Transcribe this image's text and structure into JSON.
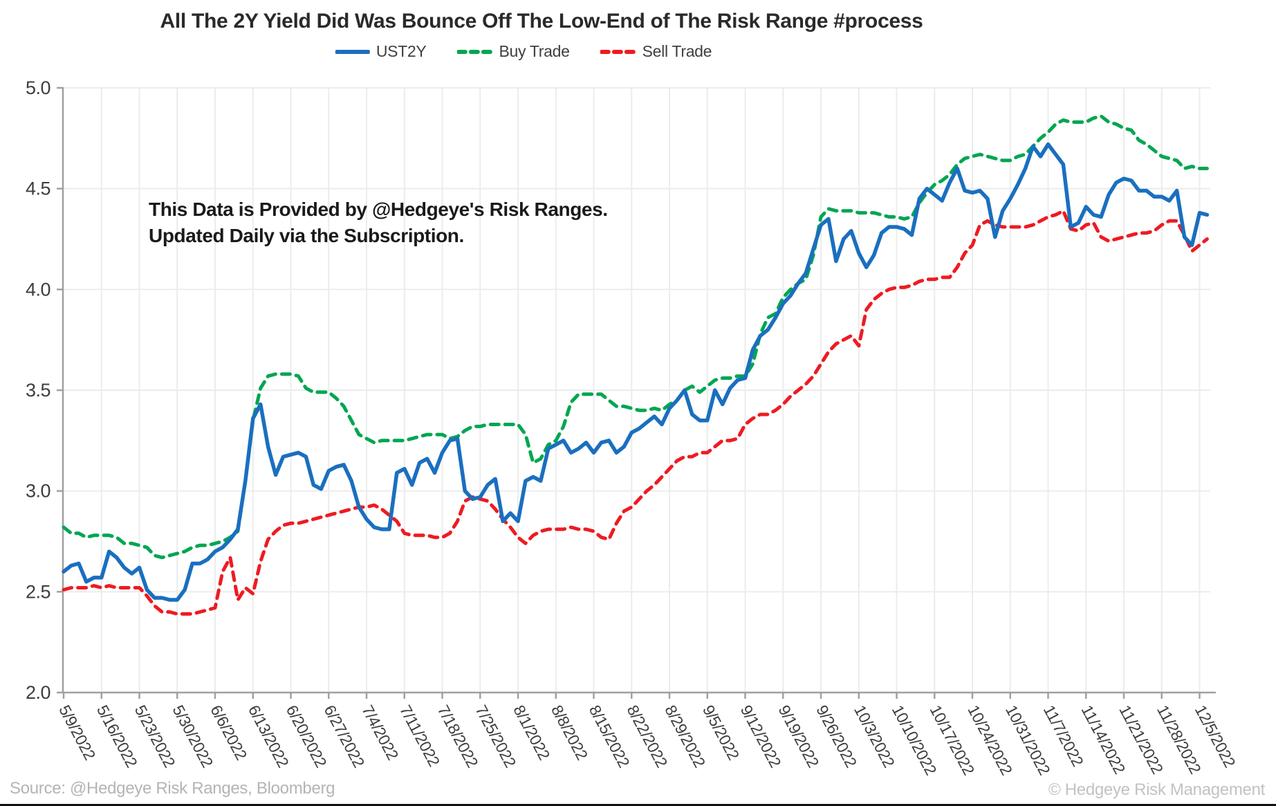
{
  "title": "All The 2Y Yield Did Was Bounce Off The Low-End of The Risk Range #process",
  "legend": {
    "items": [
      {
        "label": "UST2Y",
        "color": "#1a6fbf",
        "style": "solid"
      },
      {
        "label": "Buy Trade",
        "color": "#00a651",
        "style": "dashed"
      },
      {
        "label": "Sell Trade",
        "color": "#ee1b22",
        "style": "dashed"
      }
    ]
  },
  "annotation": {
    "line1": "This Data is Provided by @Hedgeye's Risk Ranges.",
    "line2": "Updated Daily via the Subscription."
  },
  "footer": {
    "source": "Source: @Hedgeye Risk Ranges, Bloomberg",
    "copyright": "© Hedgeye Risk Management"
  },
  "colors": {
    "ust2y": "#1a6fbf",
    "buy_trade": "#00a651",
    "sell_trade": "#ee1b22",
    "gridline": "#ececec",
    "spine": "#a0a0a0",
    "tick_label": "#3d3d3d"
  },
  "chart_data": {
    "type": "line",
    "title": "All The 2Y Yield Did Was Bounce Off The Low-End of The Risk Range #process",
    "xlabel": "",
    "ylabel": "",
    "ylim": [
      2.0,
      5.0
    ],
    "ytick_labels": [
      "5.0",
      "4.5",
      "4.0",
      "3.5",
      "3.0",
      "2.5",
      "2.0"
    ],
    "yticks": [
      5.0,
      4.5,
      4.0,
      3.5,
      3.0,
      2.5,
      2.0
    ],
    "grid": true,
    "legend_position": "top",
    "x_tick_every": 5,
    "x_tick_labels": [
      "5/9/2022",
      "5/16/2022",
      "5/23/2022",
      "5/30/2022",
      "6/6/2022",
      "6/13/2022",
      "6/20/2022",
      "6/27/2022",
      "7/4/2022",
      "7/11/2022",
      "7/18/2022",
      "7/25/2022",
      "8/1/2022",
      "8/8/2022",
      "8/15/2022",
      "8/22/2022",
      "8/29/2022",
      "9/5/2022",
      "9/12/2022",
      "9/19/2022",
      "9/26/2022",
      "10/3/2022",
      "10/10/2022",
      "10/17/2022",
      "10/24/2022",
      "10/31/2022",
      "11/7/2022",
      "11/14/2022",
      "11/21/2022",
      "11/28/2022",
      "12/5/2022"
    ],
    "x": [
      "5/9",
      "5/10",
      "5/11",
      "5/12",
      "5/13",
      "5/16",
      "5/17",
      "5/18",
      "5/19",
      "5/20",
      "5/23",
      "5/24",
      "5/25",
      "5/26",
      "5/27",
      "5/30",
      "5/31",
      "6/1",
      "6/2",
      "6/3",
      "6/6",
      "6/7",
      "6/8",
      "6/9",
      "6/10",
      "6/13",
      "6/14",
      "6/15",
      "6/16",
      "6/17",
      "6/20",
      "6/21",
      "6/22",
      "6/23",
      "6/24",
      "6/27",
      "6/28",
      "6/29",
      "6/30",
      "7/1",
      "7/4",
      "7/5",
      "7/6",
      "7/7",
      "7/8",
      "7/11",
      "7/12",
      "7/13",
      "7/14",
      "7/15",
      "7/18",
      "7/19",
      "7/20",
      "7/21",
      "7/22",
      "7/25",
      "7/26",
      "7/27",
      "7/28",
      "7/29",
      "8/1",
      "8/2",
      "8/3",
      "8/4",
      "8/5",
      "8/8",
      "8/9",
      "8/10",
      "8/11",
      "8/12",
      "8/15",
      "8/16",
      "8/17",
      "8/18",
      "8/19",
      "8/22",
      "8/23",
      "8/24",
      "8/25",
      "8/26",
      "8/29",
      "8/30",
      "8/31",
      "9/1",
      "9/2",
      "9/5",
      "9/6",
      "9/7",
      "9/8",
      "9/9",
      "9/12",
      "9/13",
      "9/14",
      "9/15",
      "9/16",
      "9/19",
      "9/20",
      "9/21",
      "9/22",
      "9/23",
      "9/26",
      "9/27",
      "9/28",
      "9/29",
      "9/30",
      "10/3",
      "10/4",
      "10/5",
      "10/6",
      "10/7",
      "10/10",
      "10/11",
      "10/12",
      "10/13",
      "10/14",
      "10/17",
      "10/18",
      "10/19",
      "10/20",
      "10/21",
      "10/24",
      "10/25",
      "10/26",
      "10/27",
      "10/28",
      "10/31",
      "11/1",
      "11/2",
      "11/3",
      "11/4",
      "11/7",
      "11/8",
      "11/9",
      "11/10",
      "11/11",
      "11/14",
      "11/15",
      "11/16",
      "11/17",
      "11/18",
      "11/21",
      "11/22",
      "11/23",
      "11/24",
      "11/25",
      "11/28",
      "11/29",
      "11/30",
      "12/1",
      "12/2",
      "12/5",
      "12/6"
    ],
    "series": [
      {
        "name": "UST2Y",
        "color": "#1a6fbf",
        "dashed": false,
        "values": [
          2.6,
          2.63,
          2.64,
          2.55,
          2.57,
          2.57,
          2.7,
          2.67,
          2.62,
          2.59,
          2.62,
          2.51,
          2.47,
          2.47,
          2.46,
          2.46,
          2.51,
          2.64,
          2.64,
          2.66,
          2.7,
          2.72,
          2.76,
          2.81,
          3.05,
          3.36,
          3.43,
          3.22,
          3.08,
          3.17,
          3.18,
          3.19,
          3.17,
          3.03,
          3.01,
          3.1,
          3.12,
          3.13,
          3.05,
          2.92,
          2.86,
          2.82,
          2.81,
          2.81,
          3.09,
          3.11,
          3.03,
          3.14,
          3.16,
          3.09,
          3.19,
          3.25,
          3.26,
          3.0,
          2.96,
          2.97,
          3.03,
          3.06,
          2.85,
          2.89,
          2.85,
          3.05,
          3.07,
          3.05,
          3.21,
          3.23,
          3.25,
          3.19,
          3.21,
          3.24,
          3.19,
          3.24,
          3.25,
          3.19,
          3.22,
          3.29,
          3.31,
          3.34,
          3.37,
          3.33,
          3.41,
          3.45,
          3.5,
          3.38,
          3.35,
          3.35,
          3.5,
          3.43,
          3.51,
          3.55,
          3.56,
          3.7,
          3.77,
          3.8,
          3.86,
          3.93,
          3.97,
          4.03,
          4.08,
          4.2,
          4.32,
          4.35,
          4.14,
          4.25,
          4.29,
          4.18,
          4.11,
          4.17,
          4.28,
          4.31,
          4.31,
          4.3,
          4.27,
          4.45,
          4.5,
          4.47,
          4.44,
          4.53,
          4.6,
          4.49,
          4.48,
          4.49,
          4.45,
          4.26,
          4.39,
          4.45,
          4.52,
          4.6,
          4.71,
          4.66,
          4.72,
          4.67,
          4.62,
          4.31,
          4.33,
          4.41,
          4.37,
          4.36,
          4.47,
          4.53,
          4.55,
          4.54,
          4.49,
          4.49,
          4.46,
          4.46,
          4.44,
          4.49,
          4.26,
          4.22,
          4.38,
          4.37
        ]
      },
      {
        "name": "Buy Trade",
        "color": "#00a651",
        "dashed": true,
        "values": [
          2.82,
          2.79,
          2.79,
          2.77,
          2.78,
          2.78,
          2.78,
          2.77,
          2.74,
          2.74,
          2.73,
          2.72,
          2.68,
          2.67,
          2.68,
          2.69,
          2.7,
          2.72,
          2.73,
          2.73,
          2.74,
          2.75,
          2.77,
          2.8,
          3.05,
          3.35,
          3.51,
          3.57,
          3.58,
          3.58,
          3.58,
          3.57,
          3.51,
          3.49,
          3.49,
          3.49,
          3.46,
          3.42,
          3.35,
          3.28,
          3.26,
          3.24,
          3.25,
          3.25,
          3.25,
          3.25,
          3.26,
          3.27,
          3.28,
          3.28,
          3.28,
          3.26,
          3.27,
          3.3,
          3.32,
          3.32,
          3.33,
          3.33,
          3.33,
          3.33,
          3.33,
          3.28,
          3.14,
          3.16,
          3.23,
          3.25,
          3.32,
          3.44,
          3.48,
          3.48,
          3.48,
          3.48,
          3.45,
          3.42,
          3.42,
          3.41,
          3.4,
          3.4,
          3.41,
          3.4,
          3.43,
          3.45,
          3.5,
          3.52,
          3.49,
          3.52,
          3.55,
          3.56,
          3.56,
          3.57,
          3.57,
          3.63,
          3.78,
          3.86,
          3.88,
          3.96,
          4.0,
          4.03,
          4.05,
          4.17,
          4.36,
          4.4,
          4.39,
          4.39,
          4.39,
          4.38,
          4.38,
          4.38,
          4.37,
          4.36,
          4.36,
          4.35,
          4.36,
          4.43,
          4.48,
          4.52,
          4.54,
          4.57,
          4.62,
          4.65,
          4.66,
          4.67,
          4.66,
          4.65,
          4.64,
          4.64,
          4.66,
          4.67,
          4.71,
          4.75,
          4.78,
          4.82,
          4.84,
          4.83,
          4.83,
          4.83,
          4.85,
          4.86,
          4.83,
          4.82,
          4.8,
          4.79,
          4.74,
          4.72,
          4.69,
          4.66,
          4.65,
          4.64,
          4.6,
          4.61,
          4.6,
          4.6
        ]
      },
      {
        "name": "Sell Trade",
        "color": "#ee1b22",
        "dashed": true,
        "values": [
          2.51,
          2.52,
          2.52,
          2.52,
          2.53,
          2.52,
          2.53,
          2.52,
          2.52,
          2.52,
          2.52,
          2.48,
          2.43,
          2.4,
          2.4,
          2.39,
          2.39,
          2.39,
          2.4,
          2.41,
          2.42,
          2.6,
          2.67,
          2.46,
          2.52,
          2.49,
          2.65,
          2.76,
          2.8,
          2.83,
          2.84,
          2.84,
          2.85,
          2.86,
          2.87,
          2.88,
          2.89,
          2.9,
          2.91,
          2.92,
          2.92,
          2.93,
          2.91,
          2.88,
          2.85,
          2.79,
          2.78,
          2.78,
          2.78,
          2.77,
          2.77,
          2.79,
          2.85,
          2.95,
          2.97,
          2.96,
          2.95,
          2.91,
          2.86,
          2.82,
          2.77,
          2.74,
          2.78,
          2.8,
          2.81,
          2.81,
          2.81,
          2.82,
          2.81,
          2.81,
          2.8,
          2.77,
          2.76,
          2.84,
          2.9,
          2.92,
          2.96,
          3.0,
          3.03,
          3.07,
          3.11,
          3.15,
          3.17,
          3.17,
          3.19,
          3.19,
          3.22,
          3.25,
          3.25,
          3.26,
          3.33,
          3.36,
          3.38,
          3.38,
          3.4,
          3.43,
          3.47,
          3.5,
          3.53,
          3.57,
          3.63,
          3.69,
          3.73,
          3.75,
          3.77,
          3.72,
          3.9,
          3.95,
          3.98,
          4.0,
          4.01,
          4.01,
          4.02,
          4.04,
          4.05,
          4.05,
          4.06,
          4.06,
          4.11,
          4.18,
          4.22,
          4.32,
          4.34,
          4.32,
          4.31,
          4.31,
          4.31,
          4.31,
          4.32,
          4.34,
          4.36,
          4.37,
          4.39,
          4.3,
          4.29,
          4.32,
          4.33,
          4.26,
          4.24,
          4.25,
          4.26,
          4.27,
          4.28,
          4.28,
          4.29,
          4.32,
          4.34,
          4.34,
          4.27,
          4.19,
          4.22,
          4.25
        ]
      }
    ]
  }
}
